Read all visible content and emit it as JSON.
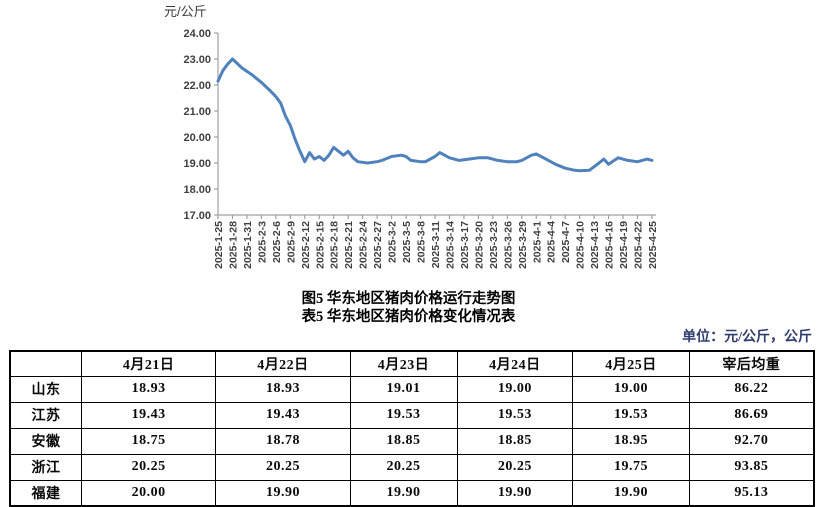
{
  "chart": {
    "line_color": "#4F81BD",
    "axis_color": "#a0a0a0",
    "label_color": "#3f3f3f"
  },
  "chart_data": {
    "type": "line",
    "title": "图5 华东地区猪肉价格运行走势图",
    "ylabel": "元/公斤",
    "ylim": [
      17.0,
      24.0
    ],
    "ytick_step": 1.0,
    "ytick_labels": [
      "24.00",
      "23.00",
      "22.00",
      "21.00",
      "20.00",
      "19.00",
      "18.00",
      "17.00"
    ],
    "grid": false,
    "legend": "none",
    "x_tick_labels": [
      "2025-1-25",
      "2025-1-28",
      "2025-1-31",
      "2025-2-3",
      "2025-2-6",
      "2025-2-9",
      "2025-2-12",
      "2025-2-15",
      "2025-2-18",
      "2025-2-21",
      "2025-2-24",
      "2025-2-27",
      "2025-3-2",
      "2025-3-5",
      "2025-3-8",
      "2025-3-11",
      "2025-3-14",
      "2025-3-17",
      "2025-3-20",
      "2025-3-23",
      "2025-3-26",
      "2025-3-29",
      "2025-4-1",
      "2025-4-4",
      "2025-4-7",
      "2025-4-10",
      "2025-4-13",
      "2025-4-16",
      "2025-4-19",
      "2025-4-22",
      "2025-4-25"
    ],
    "x_tick_interval_days": 3,
    "x_range_days": [
      0,
      90
    ],
    "series": [
      {
        "name": "华东地区猪肉价格",
        "points": [
          [
            0,
            22.15
          ],
          [
            1,
            22.55
          ],
          [
            2,
            22.8
          ],
          [
            3,
            23.0
          ],
          [
            5,
            22.65
          ],
          [
            7,
            22.4
          ],
          [
            9,
            22.1
          ],
          [
            11,
            21.75
          ],
          [
            12,
            21.55
          ],
          [
            13,
            21.3
          ],
          [
            14,
            20.8
          ],
          [
            15,
            20.45
          ],
          [
            16,
            19.9
          ],
          [
            17,
            19.45
          ],
          [
            18,
            19.05
          ],
          [
            19,
            19.4
          ],
          [
            20,
            19.15
          ],
          [
            21,
            19.25
          ],
          [
            22,
            19.1
          ],
          [
            23,
            19.3
          ],
          [
            24,
            19.6
          ],
          [
            25,
            19.45
          ],
          [
            26,
            19.3
          ],
          [
            27,
            19.45
          ],
          [
            28,
            19.2
          ],
          [
            29,
            19.05
          ],
          [
            31,
            19.0
          ],
          [
            33,
            19.05
          ],
          [
            34,
            19.1
          ],
          [
            36,
            19.25
          ],
          [
            38,
            19.3
          ],
          [
            39,
            19.25
          ],
          [
            40,
            19.1
          ],
          [
            42,
            19.05
          ],
          [
            43,
            19.05
          ],
          [
            45,
            19.25
          ],
          [
            46,
            19.4
          ],
          [
            48,
            19.2
          ],
          [
            50,
            19.1
          ],
          [
            52,
            19.15
          ],
          [
            54,
            19.2
          ],
          [
            56,
            19.2
          ],
          [
            58,
            19.1
          ],
          [
            60,
            19.05
          ],
          [
            62,
            19.05
          ],
          [
            63,
            19.1
          ],
          [
            65,
            19.3
          ],
          [
            66,
            19.35
          ],
          [
            68,
            19.15
          ],
          [
            70,
            18.95
          ],
          [
            72,
            18.8
          ],
          [
            74,
            18.72
          ],
          [
            75,
            18.7
          ],
          [
            77,
            18.72
          ],
          [
            79,
            19.0
          ],
          [
            80,
            19.15
          ],
          [
            81,
            18.95
          ],
          [
            83,
            19.2
          ],
          [
            85,
            19.1
          ],
          [
            87,
            19.05
          ],
          [
            89,
            19.15
          ],
          [
            90,
            19.1
          ]
        ]
      }
    ]
  },
  "captions": {
    "figure": "图5 华东地区猪肉价格运行走势图",
    "table": "表5 华东地区猪肉价格变化情况表"
  },
  "unit_note": "单位：元/公斤，公斤",
  "table": {
    "headers": [
      "",
      "4月21日",
      "4月22日",
      "4月23日",
      "4月24日",
      "4月25日",
      "宰后均重"
    ],
    "col_widths": [
      "8.9%",
      "16.7%",
      "16.7%",
      "13.3%",
      "14.4%",
      "14.5%",
      "15.5%"
    ],
    "rows": [
      {
        "region": "山东",
        "values": [
          "18.93",
          "18.93",
          "19.01",
          "19.00",
          "19.00",
          "86.22"
        ]
      },
      {
        "region": "江苏",
        "values": [
          "19.43",
          "19.43",
          "19.53",
          "19.53",
          "19.53",
          "86.69"
        ]
      },
      {
        "region": "安徽",
        "values": [
          "18.75",
          "18.78",
          "18.85",
          "18.85",
          "18.95",
          "92.70"
        ]
      },
      {
        "region": "浙江",
        "values": [
          "20.25",
          "20.25",
          "20.25",
          "20.25",
          "19.75",
          "93.85"
        ]
      },
      {
        "region": "福建",
        "values": [
          "20.00",
          "19.90",
          "19.90",
          "19.90",
          "19.90",
          "95.13"
        ]
      }
    ]
  }
}
